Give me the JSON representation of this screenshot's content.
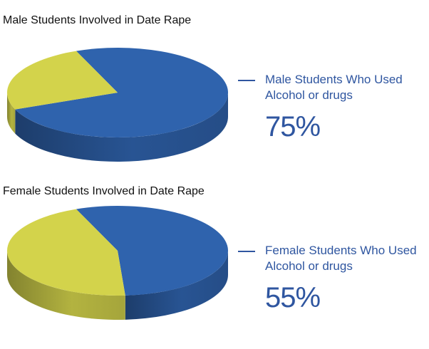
{
  "chart_data": [
    {
      "type": "pie",
      "title": "Male Students Involved in Date Rape",
      "categories": [
        "Male Students Who Used Alcohol or drugs",
        ""
      ],
      "values": [
        75,
        25
      ],
      "colors": [
        "#2f63ad",
        "#d3d34b"
      ],
      "legend_label": "Male Students Who Used Alcohol or drugs",
      "value_label": "75%",
      "style": "3d",
      "legend_position": "right"
    },
    {
      "type": "pie",
      "title": "Female Students Involved in Date Rape",
      "categories": [
        "Female Students Who Used Alcohol or drugs",
        ""
      ],
      "values": [
        55,
        45
      ],
      "colors": [
        "#2f63ad",
        "#d3d34b"
      ],
      "legend_label": "Female Students Who Used Alcohol or drugs",
      "value_label": "55%",
      "style": "3d",
      "legend_position": "right"
    }
  ]
}
